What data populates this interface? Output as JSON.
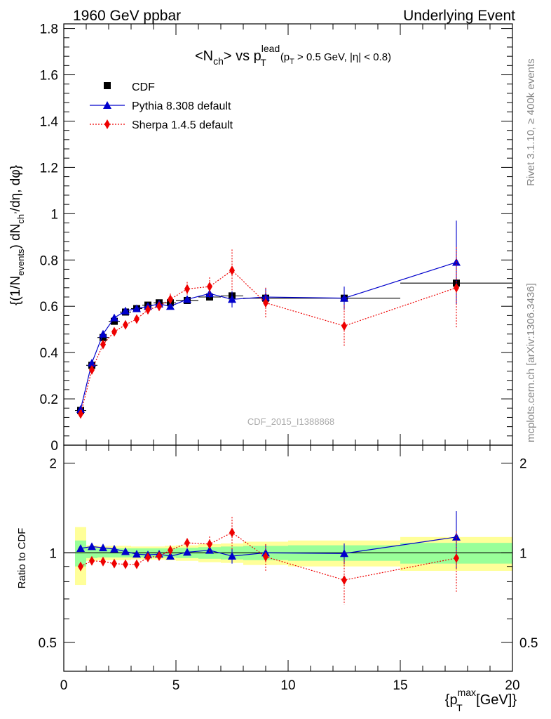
{
  "header": {
    "left": "1960 GeV ppbar",
    "right": "Underlying Event"
  },
  "side_labels": {
    "rivet": "Rivet 3.1.10, ≥ 400k events",
    "mcplots": "mcplots.cern.ch [arXiv:1306.3436]"
  },
  "watermark": "CDF_2015_I1388868",
  "colors": {
    "cdf": "#000000",
    "pythia": "#0000cc",
    "sherpa": "#ee0000",
    "band_inner": "#99ff99",
    "band_outer": "#ffff99"
  },
  "chart_data": [
    {
      "type": "scatter",
      "title": "<N_ch> vs p_T^lead (p_T > 0.5 GeV, |η| < 0.8)",
      "title_parts": {
        "main": "<N",
        "main_sub": "ch",
        "mid": "> vs p",
        "mid_sup": "lead",
        "mid_sub": "T",
        "cut1": "(p",
        "cut1_sub": "T",
        "cut2": " > 0.5 GeV, |η| < 0.8)"
      },
      "ylabel": "{(1/N_events) dN_ch^,/dη, dφ}",
      "ylim": [
        0,
        1.82
      ],
      "yticks": [
        "0",
        "0.2",
        "0.4",
        "0.6",
        "0.8",
        "1",
        "1.2",
        "1.4",
        "1.6",
        "1.8"
      ],
      "grid": false,
      "legend_position": "top-left",
      "x": [
        0.75,
        1.25,
        1.75,
        2.25,
        2.75,
        3.25,
        3.75,
        4.25,
        4.75,
        5.5,
        6.5,
        7.5,
        9.0,
        12.5,
        17.5
      ],
      "xerr": [
        0.25,
        0.25,
        0.25,
        0.25,
        0.25,
        0.25,
        0.25,
        0.25,
        0.25,
        0.5,
        0.5,
        0.5,
        1.0,
        2.5,
        2.5
      ],
      "series": [
        {
          "name": "CDF",
          "style": "square-markers",
          "values": [
            0.15,
            0.345,
            0.465,
            0.535,
            0.575,
            0.59,
            0.605,
            0.615,
            0.615,
            0.625,
            0.64,
            0.645,
            0.635,
            0.635,
            0.7
          ],
          "errors": [
            0.005,
            0.005,
            0.005,
            0.005,
            0.005,
            0.005,
            0.005,
            0.005,
            0.005,
            0.005,
            0.005,
            0.005,
            0.01,
            0.01,
            0.02
          ]
        },
        {
          "name": "Pythia 8.308 default",
          "style": "solid-line-triangles",
          "values": [
            0.155,
            0.355,
            0.48,
            0.55,
            0.58,
            0.59,
            0.6,
            0.61,
            0.6,
            0.63,
            0.655,
            0.63,
            0.64,
            0.635,
            0.79
          ],
          "errors": [
            0.005,
            0.005,
            0.005,
            0.005,
            0.005,
            0.005,
            0.01,
            0.01,
            0.01,
            0.01,
            0.02,
            0.035,
            0.04,
            0.05,
            0.18
          ]
        },
        {
          "name": "Sherpa 1.4.5 default",
          "style": "dotted-line-diamonds",
          "values": [
            0.135,
            0.325,
            0.435,
            0.49,
            0.52,
            0.545,
            0.585,
            0.6,
            0.63,
            0.675,
            0.685,
            0.755,
            0.615,
            0.515,
            0.68
          ],
          "errors": [
            0.005,
            0.005,
            0.01,
            0.01,
            0.01,
            0.015,
            0.015,
            0.02,
            0.025,
            0.03,
            0.04,
            0.09,
            0.065,
            0.09,
            0.175
          ]
        }
      ]
    },
    {
      "type": "scatter",
      "title": "",
      "ylabel": "Ratio to CDF",
      "xlabel": "{p_T^max [GeV]}",
      "xlabel_parts": {
        "open": "{p",
        "sup": "max",
        "sub": "T",
        "close": " [GeV]}"
      },
      "xlim": [
        0,
        20
      ],
      "xticks": [
        "0",
        "5",
        "10",
        "15",
        "20"
      ],
      "ylim": [
        0.4,
        2.3
      ],
      "yscale": "log",
      "yticks": [
        "0.5",
        "1",
        "2"
      ],
      "reference_line": 1,
      "x": [
        0.75,
        1.25,
        1.75,
        2.25,
        2.75,
        3.25,
        3.75,
        4.25,
        4.75,
        5.5,
        6.5,
        7.5,
        9.0,
        12.5,
        17.5
      ],
      "xerr": [
        0.25,
        0.25,
        0.25,
        0.25,
        0.25,
        0.25,
        0.25,
        0.25,
        0.25,
        0.5,
        0.5,
        0.5,
        1.0,
        2.5,
        2.5
      ],
      "bands": {
        "inner_halfwidth": [
          0.1,
          0.04,
          0.035,
          0.035,
          0.035,
          0.035,
          0.035,
          0.035,
          0.035,
          0.04,
          0.045,
          0.05,
          0.055,
          0.06,
          0.08
        ],
        "outer_halfwidth": [
          0.22,
          0.06,
          0.055,
          0.055,
          0.055,
          0.05,
          0.05,
          0.05,
          0.055,
          0.06,
          0.07,
          0.075,
          0.09,
          0.1,
          0.13
        ]
      },
      "series": [
        {
          "name": "Pythia 8.308 default",
          "style": "solid-line-triangles",
          "values": [
            1.035,
            1.05,
            1.04,
            1.03,
            1.01,
            0.99,
            0.985,
            0.99,
            0.975,
            1.005,
            1.02,
            0.975,
            1.0,
            0.995,
            1.13
          ],
          "errors": [
            0.01,
            0.01,
            0.01,
            0.01,
            0.01,
            0.01,
            0.015,
            0.015,
            0.015,
            0.015,
            0.025,
            0.055,
            0.065,
            0.08,
            0.25
          ]
        },
        {
          "name": "Sherpa 1.4.5 default",
          "style": "dotted-line-diamonds",
          "values": [
            0.9,
            0.94,
            0.935,
            0.92,
            0.915,
            0.915,
            0.965,
            0.975,
            1.02,
            1.08,
            1.07,
            1.17,
            0.97,
            0.81,
            0.96
          ],
          "errors": [
            0.01,
            0.01,
            0.015,
            0.015,
            0.015,
            0.02,
            0.02,
            0.03,
            0.04,
            0.04,
            0.065,
            0.15,
            0.1,
            0.14,
            0.22
          ]
        }
      ]
    }
  ]
}
